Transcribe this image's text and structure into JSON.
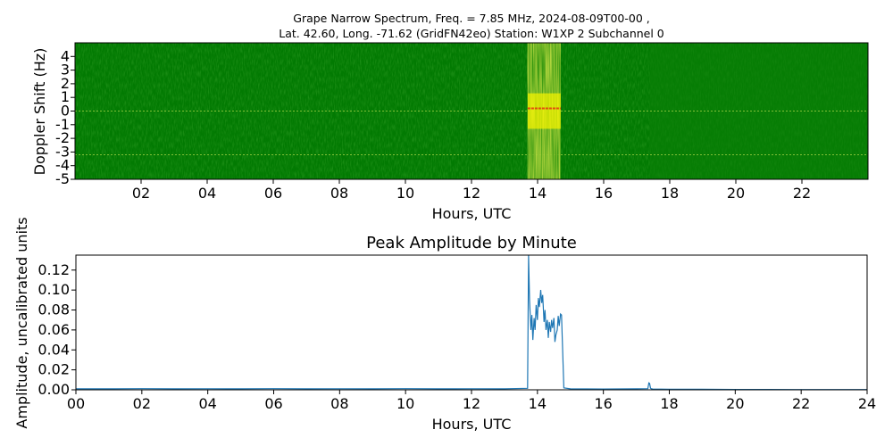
{
  "spectrogram": {
    "title_line1": "Grape Narrow Spectrum, Freq. = 7.85 MHz, 2024-08-09T00-00 ,",
    "title_line2": "Lat.  42.60, Long. -71.62 (GridFN42eo) Station: W1XP 2 Subchannel 0",
    "xlabel": "Hours, UTC",
    "ylabel": "Doppler Shift (Hz)",
    "background_color": "#027a02",
    "grain_color": "#1f8c12",
    "carrier_color": "#8fc83c",
    "burst_color": "#f2f200",
    "peak_color": "#e53010"
  },
  "chart_data": [
    {
      "type": "heatmap",
      "xlim": [
        0,
        24
      ],
      "ylim": [
        -5,
        5
      ],
      "x_ticks": [
        {
          "value": 2,
          "label": "02"
        },
        {
          "value": 4,
          "label": "04"
        },
        {
          "value": 6,
          "label": "06"
        },
        {
          "value": 8,
          "label": "08"
        },
        {
          "value": 10,
          "label": "10"
        },
        {
          "value": 12,
          "label": "12"
        },
        {
          "value": 14,
          "label": "14"
        },
        {
          "value": 16,
          "label": "16"
        },
        {
          "value": 18,
          "label": "18"
        },
        {
          "value": 20,
          "label": "20"
        },
        {
          "value": 22,
          "label": "22"
        }
      ],
      "y_ticks": [
        {
          "value": 4,
          "label": "4"
        },
        {
          "value": 3,
          "label": "3"
        },
        {
          "value": 2,
          "label": "2"
        },
        {
          "value": 1,
          "label": "1"
        },
        {
          "value": 0,
          "label": "0"
        },
        {
          "value": -1,
          "label": "-1"
        },
        {
          "value": -2,
          "label": "-2"
        },
        {
          "value": -3,
          "label": "-3"
        },
        {
          "value": -4,
          "label": "-4"
        },
        {
          "value": -5,
          "label": "-5"
        }
      ],
      "carrier_lines_hz": [
        0,
        -3.2
      ],
      "signal_burst_hours": [
        13.7,
        14.7
      ],
      "texture_shift_hour": 17.4,
      "grid": false
    },
    {
      "type": "line",
      "title": "Peak Amplitude by Minute",
      "xlabel": "Hours, UTC",
      "ylabel": "Amplitude, uncalibrated units",
      "xlim": [
        0,
        24
      ],
      "ylim": [
        0,
        0.135
      ],
      "x_ticks": [
        {
          "value": 0,
          "label": "00"
        },
        {
          "value": 2,
          "label": "02"
        },
        {
          "value": 4,
          "label": "04"
        },
        {
          "value": 6,
          "label": "06"
        },
        {
          "value": 8,
          "label": "08"
        },
        {
          "value": 10,
          "label": "10"
        },
        {
          "value": 12,
          "label": "12"
        },
        {
          "value": 14,
          "label": "14"
        },
        {
          "value": 16,
          "label": "16"
        },
        {
          "value": 18,
          "label": "18"
        },
        {
          "value": 20,
          "label": "20"
        },
        {
          "value": 22,
          "label": "22"
        },
        {
          "value": 24,
          "label": "24"
        }
      ],
      "y_ticks": [
        {
          "value": 0,
          "label": "0.00"
        },
        {
          "value": 0.02,
          "label": "0.02"
        },
        {
          "value": 0.04,
          "label": "0.04"
        },
        {
          "value": 0.06,
          "label": "0.06"
        },
        {
          "value": 0.08,
          "label": "0.08"
        },
        {
          "value": 0.1,
          "label": "0.10"
        },
        {
          "value": 0.12,
          "label": "0.12"
        }
      ],
      "line_color": "#1f77b4",
      "grid": false,
      "x": [
        0,
        1,
        2,
        3,
        4,
        5,
        6,
        7,
        8,
        9,
        10,
        11,
        12,
        13,
        13.7,
        13.73,
        13.76,
        13.8,
        13.83,
        13.86,
        13.9,
        13.93,
        13.96,
        14.0,
        14.03,
        14.06,
        14.1,
        14.13,
        14.16,
        14.2,
        14.23,
        14.26,
        14.3,
        14.33,
        14.36,
        14.4,
        14.43,
        14.46,
        14.5,
        14.53,
        14.56,
        14.6,
        14.63,
        14.66,
        14.7,
        14.73,
        14.8,
        15,
        16,
        17,
        17.35,
        17.38,
        17.4,
        17.43,
        17.46,
        17.5,
        18,
        19,
        20,
        21,
        22,
        23,
        24
      ],
      "y": [
        0.001,
        0.001,
        0.0012,
        0.001,
        0.0011,
        0.001,
        0.0012,
        0.001,
        0.0011,
        0.001,
        0.0012,
        0.001,
        0.0011,
        0.001,
        0.0015,
        0.135,
        0.09,
        0.06,
        0.075,
        0.05,
        0.072,
        0.06,
        0.085,
        0.07,
        0.092,
        0.083,
        0.1,
        0.087,
        0.095,
        0.068,
        0.08,
        0.06,
        0.07,
        0.052,
        0.068,
        0.058,
        0.07,
        0.062,
        0.072,
        0.048,
        0.055,
        0.06,
        0.074,
        0.064,
        0.076,
        0.075,
        0.002,
        0.001,
        0.0008,
        0.001,
        0.0012,
        0.007,
        0.0065,
        0.0015,
        0.001,
        0.0008,
        0.0006,
        0.0005,
        0.0004,
        0.0004,
        0.0003,
        0.0003,
        0.0003
      ]
    }
  ]
}
